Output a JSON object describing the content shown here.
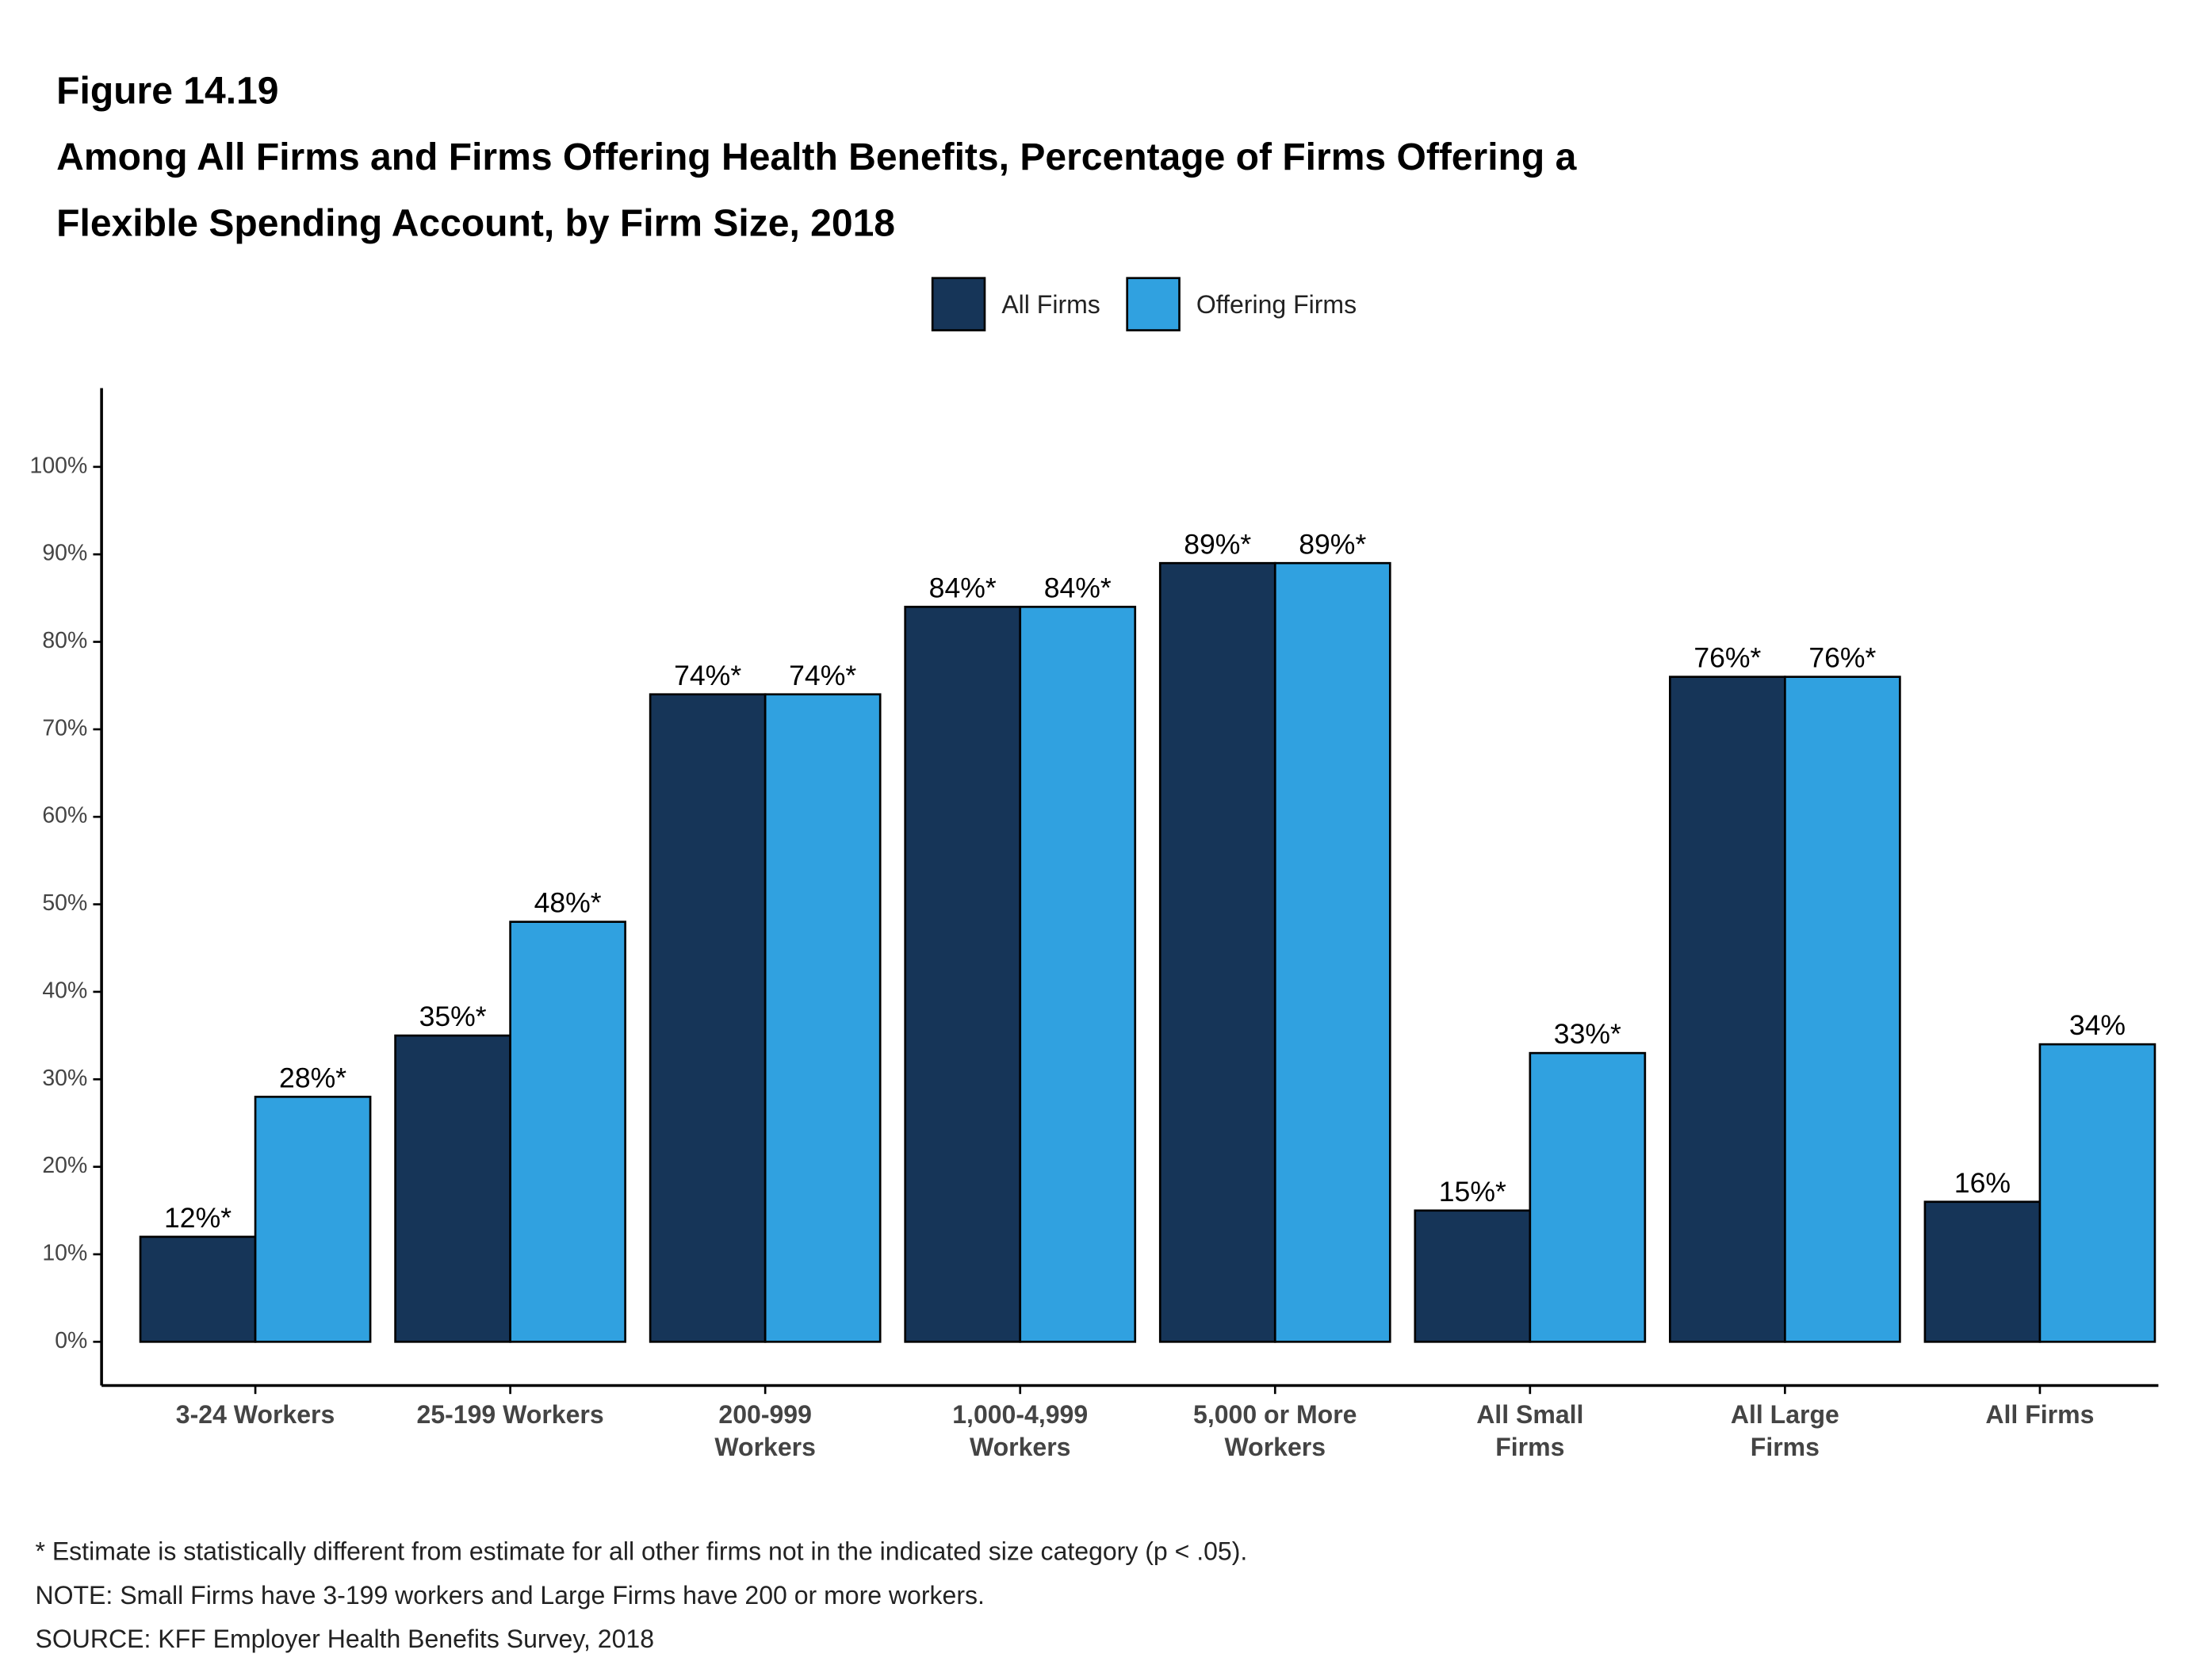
{
  "chart_data": {
    "type": "bar",
    "figure": "Figure 14.19",
    "title": [
      "Among All Firms and Firms Offering Health Benefits, Percentage of Firms Offering a",
      "Flexible Spending Account, by Firm Size, 2018"
    ],
    "categories": [
      [
        "3-24 Workers"
      ],
      [
        "25-199 Workers"
      ],
      [
        "200-999",
        "Workers"
      ],
      [
        "1,000-4,999",
        "Workers"
      ],
      [
        "5,000 or More",
        "Workers"
      ],
      [
        "All Small",
        "Firms"
      ],
      [
        "All Large",
        "Firms"
      ],
      [
        "All Firms"
      ]
    ],
    "series": [
      {
        "name": "All Firms",
        "color": "#163558",
        "values": [
          12,
          35,
          74,
          84,
          89,
          15,
          76,
          16
        ],
        "value_labels": [
          "12%*",
          "35%*",
          "74%*",
          "84%*",
          "89%*",
          "15%*",
          "76%*",
          "16%"
        ]
      },
      {
        "name": "Offering Firms",
        "color": "#30a1e0",
        "values": [
          28,
          48,
          74,
          84,
          89,
          33,
          76,
          34
        ],
        "value_labels": [
          "28%*",
          "48%*",
          "74%*",
          "84%*",
          "89%*",
          "33%*",
          "76%*",
          "34%"
        ]
      }
    ],
    "ylim": [
      -5,
      109
    ],
    "yticks": [
      {
        "value": 0,
        "label": "0%"
      },
      {
        "value": 10,
        "label": "10%"
      },
      {
        "value": 20,
        "label": "20%"
      },
      {
        "value": 30,
        "label": "30%"
      },
      {
        "value": 40,
        "label": "40%"
      },
      {
        "value": 50,
        "label": "50%"
      },
      {
        "value": 60,
        "label": "60%"
      },
      {
        "value": 70,
        "label": "70%"
      },
      {
        "value": 80,
        "label": "80%"
      },
      {
        "value": 90,
        "label": "90%"
      },
      {
        "value": 100,
        "label": "100%"
      }
    ],
    "notes": [
      "* Estimate is statistically different from estimate for all other firms not in the indicated size category (p < .05).",
      "NOTE: Small Firms have 3-199 workers and Large Firms have 200 or more workers.",
      "SOURCE: KFF Employer Health Benefits Survey, 2018"
    ]
  }
}
